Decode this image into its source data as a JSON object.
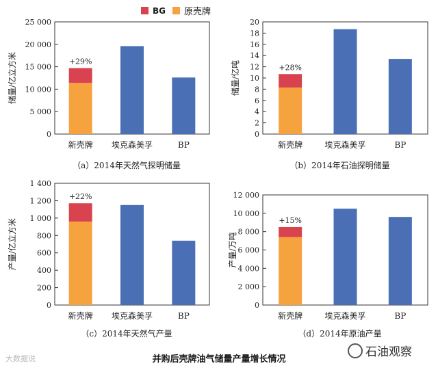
{
  "legend": {
    "items": [
      {
        "label": "BG",
        "color": "#d9434f"
      },
      {
        "label": "原壳牌",
        "color": "#f6a23f"
      }
    ]
  },
  "title": "并购后壳牌油气储量产量增长情况",
  "watermark_left": "大数据说",
  "watermark_right": "石油观察",
  "colors": {
    "shell_orig": "#f6a23f",
    "bg": "#d9434f",
    "blue": "#4a6fb5"
  },
  "chart_data": [
    {
      "type": "bar",
      "caption": "（a）2014年天然气探明储量",
      "ylabel": "储量/亿立方米",
      "ylim": [
        0,
        25000
      ],
      "yticks": [
        "0",
        "5 000",
        "10 000",
        "15 000",
        "20 000",
        "25 000"
      ],
      "ytick_values": [
        0,
        5000,
        10000,
        15000,
        20000,
        25000
      ],
      "categories": [
        "新壳牌",
        "埃克森美孚",
        "BP"
      ],
      "series": [
        {
          "name": "原壳牌",
          "values": [
            11400,
            19600,
            12600
          ]
        },
        {
          "name": "BG",
          "values": [
            3300,
            0,
            0
          ]
        }
      ],
      "annotation": "+29%"
    },
    {
      "type": "bar",
      "caption": "（b）2014年石油探明储量",
      "ylabel": "储量/亿吨",
      "ylim": [
        0,
        20
      ],
      "yticks": [
        "0",
        "2",
        "4",
        "6",
        "8",
        "10",
        "12",
        "14",
        "16",
        "18",
        "20"
      ],
      "ytick_values": [
        0,
        2,
        4,
        6,
        8,
        10,
        12,
        14,
        16,
        18,
        20
      ],
      "categories": [
        "新壳牌",
        "埃克森美孚",
        "BP"
      ],
      "series": [
        {
          "name": "原壳牌",
          "values": [
            8.3,
            18.7,
            13.4
          ]
        },
        {
          "name": "BG",
          "values": [
            2.4,
            0,
            0
          ]
        }
      ],
      "annotation": "+28%"
    },
    {
      "type": "bar",
      "caption": "（c）2014年天然气产量",
      "ylabel": "产量/亿立方米",
      "ylim": [
        0,
        1400
      ],
      "yticks": [
        "0",
        "200",
        "400",
        "600",
        "800",
        "1 000",
        "1 200",
        "1 400"
      ],
      "ytick_values": [
        0,
        200,
        400,
        600,
        800,
        1000,
        1200,
        1400
      ],
      "categories": [
        "新壳牌",
        "埃克森美孚",
        "BP"
      ],
      "series": [
        {
          "name": "原壳牌",
          "values": [
            960,
            1150,
            740
          ]
        },
        {
          "name": "BG",
          "values": [
            210,
            0,
            0
          ]
        }
      ],
      "annotation": "+22%"
    },
    {
      "type": "bar",
      "caption": "（d）2014年原油产量",
      "ylabel": "产量/万吨",
      "ylim": [
        0,
        12000
      ],
      "yticks": [
        "0",
        "2 000",
        "4 000",
        "6 000",
        "8 000",
        "10 000",
        "12 000"
      ],
      "ytick_values": [
        0,
        2000,
        4000,
        6000,
        8000,
        10000,
        12000
      ],
      "categories": [
        "新壳牌",
        "埃克森美孚",
        "BP"
      ],
      "series": [
        {
          "name": "原壳牌",
          "values": [
            7400,
            10500,
            9600
          ]
        },
        {
          "name": "BG",
          "values": [
            1100,
            0,
            0
          ]
        }
      ],
      "annotation": "+15%"
    }
  ]
}
